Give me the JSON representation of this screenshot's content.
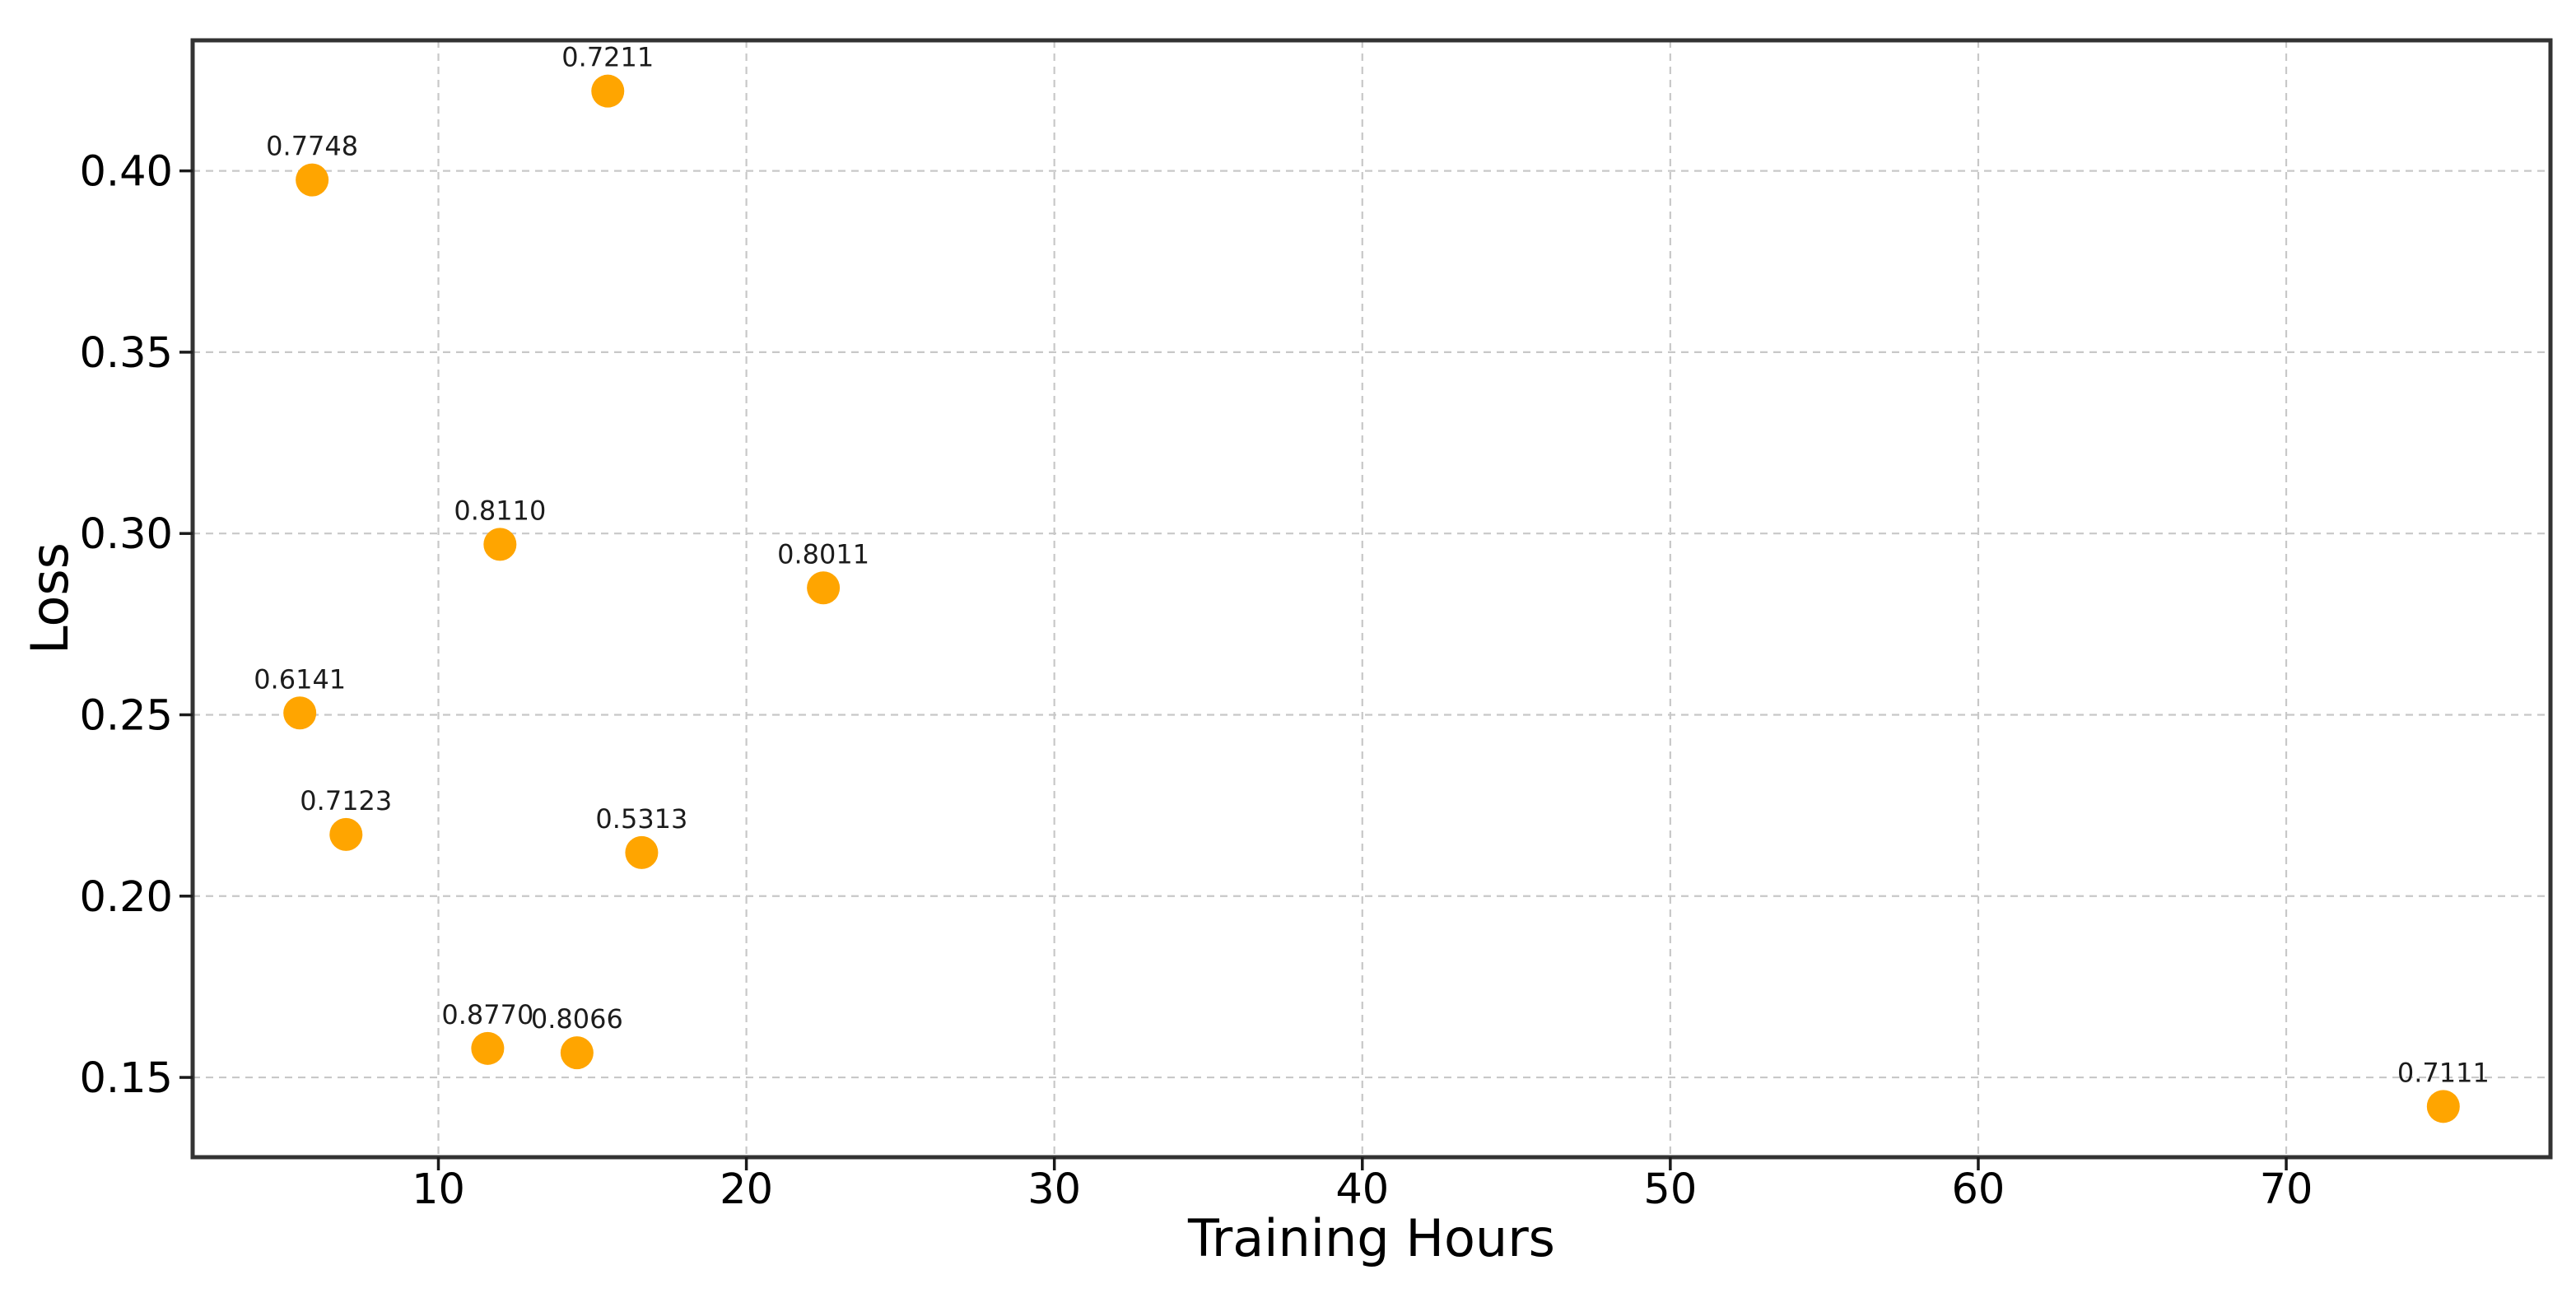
{
  "chart_data": {
    "type": "scatter",
    "title": "",
    "xlabel": "Training Hours",
    "ylabel": "Loss",
    "xlim": [
      2.02,
      78.58
    ],
    "ylim": [
      0.128,
      0.436
    ],
    "xticks": [
      10,
      20,
      30,
      40,
      50,
      60,
      70
    ],
    "xtick_labels": [
      "10",
      "20",
      "30",
      "40",
      "50",
      "60",
      "70"
    ],
    "yticks": [
      0.15,
      0.2,
      0.25,
      0.3,
      0.35,
      0.4
    ],
    "ytick_labels": [
      "0.15",
      "0.20",
      "0.25",
      "0.30",
      "0.35",
      "0.40"
    ],
    "grid": true,
    "legend": false,
    "points": [
      {
        "x": 5.9,
        "y": 0.3975,
        "label": "0.7748"
      },
      {
        "x": 15.5,
        "y": 0.422,
        "label": "0.7211"
      },
      {
        "x": 12.0,
        "y": 0.297,
        "label": "0.8110"
      },
      {
        "x": 22.5,
        "y": 0.285,
        "label": "0.8011"
      },
      {
        "x": 5.5,
        "y": 0.2505,
        "label": "0.6141"
      },
      {
        "x": 7.0,
        "y": 0.217,
        "label": "0.7123"
      },
      {
        "x": 16.6,
        "y": 0.212,
        "label": "0.5313"
      },
      {
        "x": 11.6,
        "y": 0.158,
        "label": "0.8770"
      },
      {
        "x": 14.5,
        "y": 0.1568,
        "label": "0.8066"
      },
      {
        "x": 75.1,
        "y": 0.142,
        "label": "0.7111"
      }
    ],
    "colors": {
      "marker": "#FFA500",
      "grid": "#c8c8c8",
      "spine": "#333333",
      "tick": "#1a1a1a",
      "tick_label": "#000000",
      "point_label": "#1c1c1c",
      "axis_label": "#000000",
      "background": "#ffffff"
    }
  }
}
